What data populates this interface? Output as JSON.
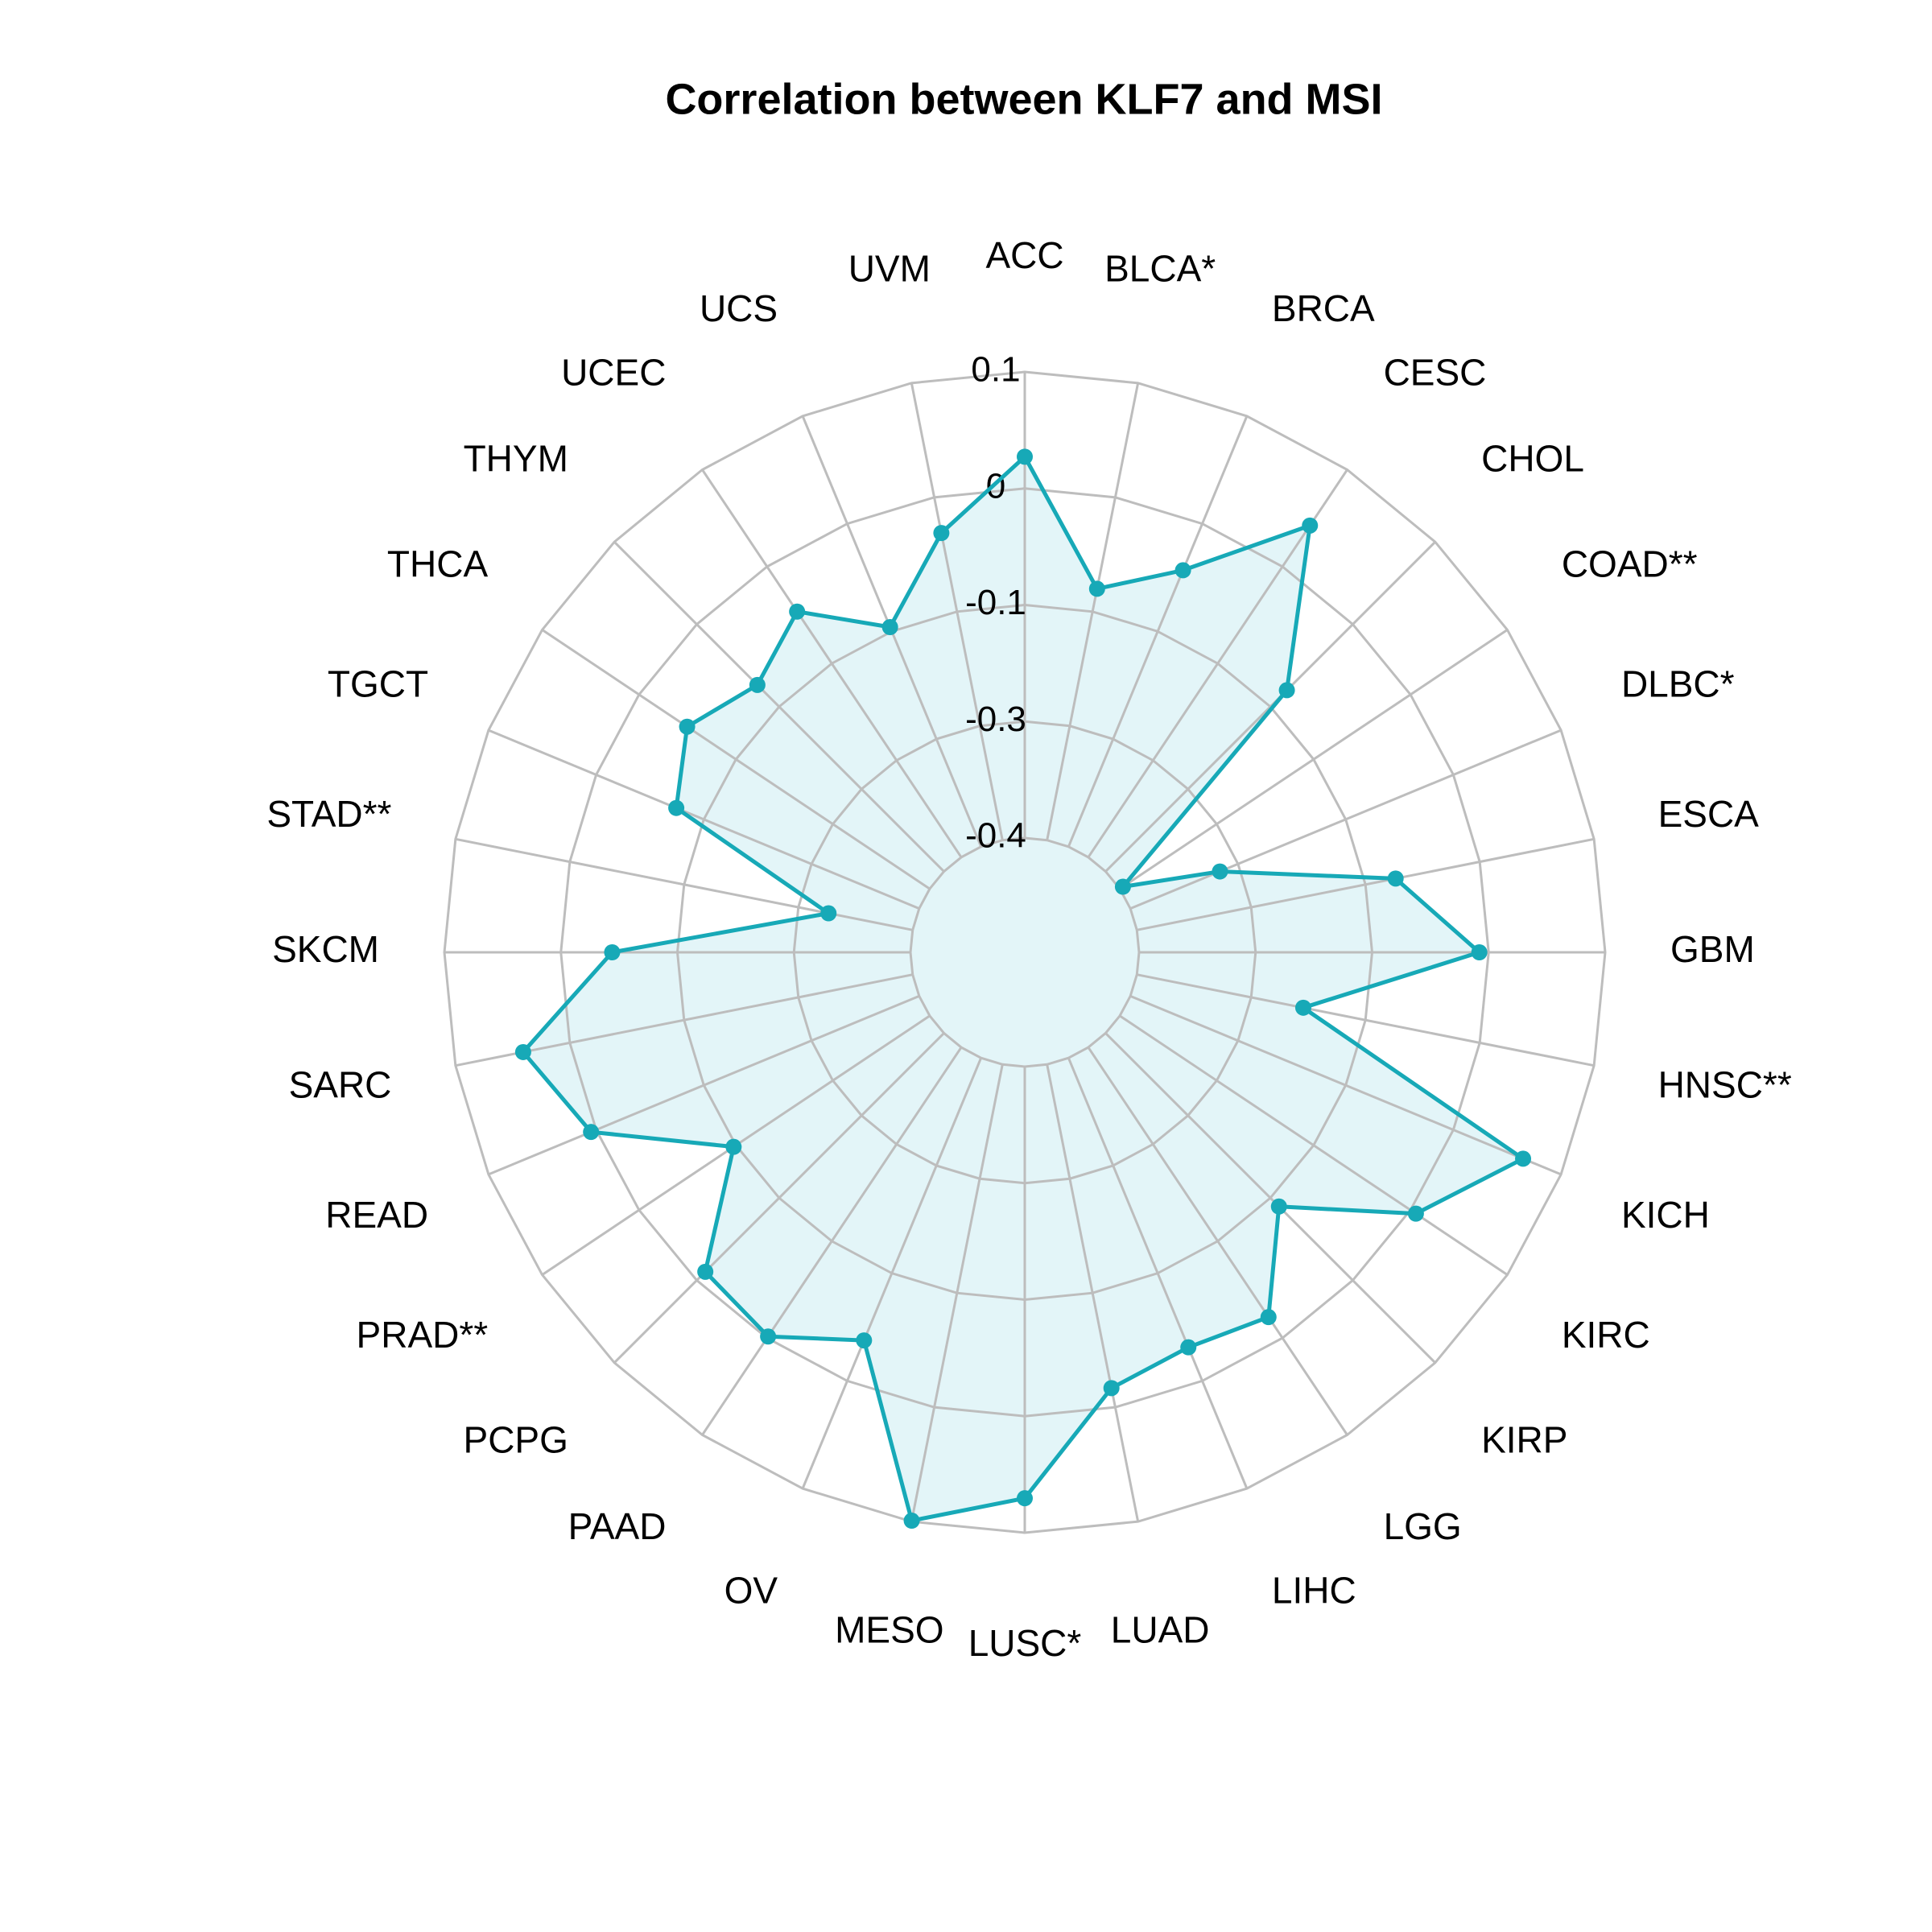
{
  "chart_data": {
    "type": "radar",
    "title": "Correlation between KLF7 and MSI",
    "categories": [
      "ACC",
      "BLCA*",
      "BRCA",
      "CESC",
      "CHOL",
      "COAD**",
      "DLBC*",
      "ESCA",
      "GBM",
      "HNSC**",
      "KICH",
      "KIRC",
      "KIRP",
      "LGG",
      "LIHC",
      "LUAD",
      "LUSC*",
      "MESO",
      "OV",
      "PAAD",
      "PCPG",
      "PRAD**",
      "READ",
      "SARC",
      "SKCM",
      "STAD**",
      "TGCT",
      "THCA",
      "THYM",
      "UCEC",
      "UCS",
      "UVM"
    ],
    "values": [
      0.009,
      -0.125,
      -0.079,
      0.028,
      -0.125,
      -0.396,
      -0.296,
      -0.117,
      -0.035,
      -0.218,
      0.056,
      -0.018,
      -0.137,
      -0.052,
      -0.064,
      -0.046,
      0.063,
      0.099,
      -0.072,
      -0.027,
      -0.038,
      -0.147,
      -0.019,
      0.026,
      -0.08,
      -0.308,
      -0.118,
      -0.087,
      -0.117,
      -0.083,
      -0.145,
      -0.064
    ],
    "color": "#17a9b7",
    "fill_color": "#e3f5f8",
    "grid_color": "#bdbdbd",
    "ylim": [
      -0.4,
      0.1
    ],
    "yticks": [
      -0.4,
      {
        "value": -0.275,
        "label": "-0.3"
      },
      {
        "value": -0.15,
        "label": "-0.1"
      },
      {
        "value": -0.025,
        "label": "0"
      },
      0.1
    ]
  }
}
